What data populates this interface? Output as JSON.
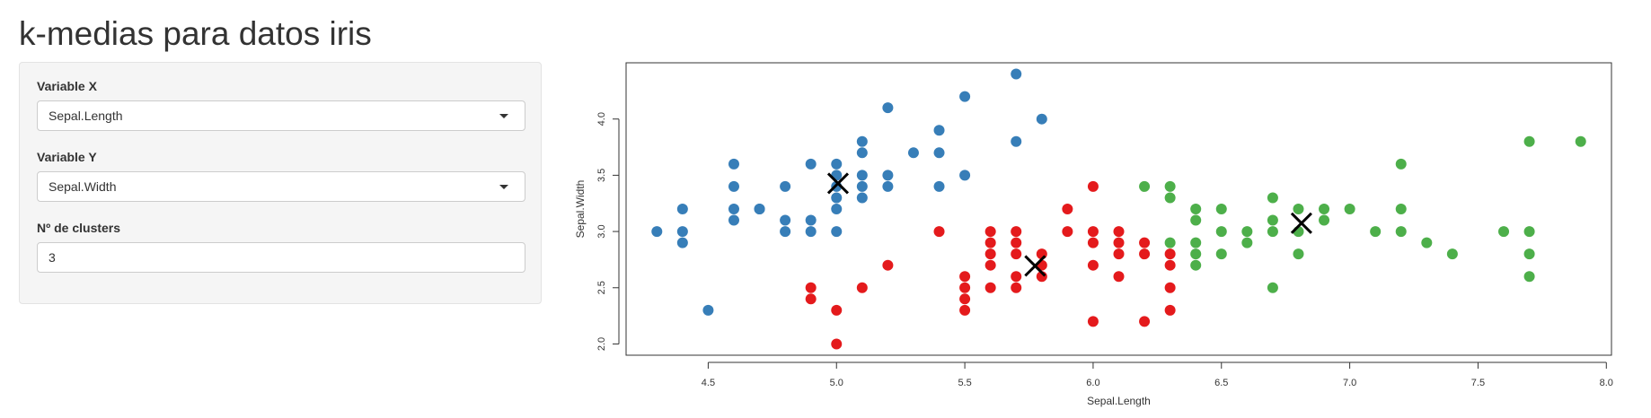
{
  "page": {
    "title": "k-medias para datos iris"
  },
  "sidebar": {
    "x_variable": {
      "label": "Variable X",
      "selected": "Sepal.Length"
    },
    "y_variable": {
      "label": "Variable Y",
      "selected": "Sepal.Width"
    },
    "clusters": {
      "label": "Nº de clusters",
      "value": "3"
    }
  },
  "chart_data": {
    "type": "scatter",
    "xlabel": "Sepal.Length",
    "ylabel": "Sepal.Width",
    "xlim": [
      4.18,
      8.02
    ],
    "ylim": [
      1.9,
      4.5
    ],
    "xticks": [
      "4.5",
      "5.0",
      "5.5",
      "6.0",
      "6.5",
      "7.0",
      "7.5",
      "8.0"
    ],
    "yticks": [
      "2.0",
      "2.5",
      "3.0",
      "3.5",
      "4.0"
    ],
    "grid": false,
    "series": [
      {
        "color": "#377eb8",
        "points": [
          [
            5.1,
            3.5
          ],
          [
            4.9,
            3.0
          ],
          [
            4.7,
            3.2
          ],
          [
            4.6,
            3.1
          ],
          [
            5.0,
            3.6
          ],
          [
            5.4,
            3.9
          ],
          [
            4.6,
            3.4
          ],
          [
            5.0,
            3.4
          ],
          [
            4.4,
            2.9
          ],
          [
            4.9,
            3.1
          ],
          [
            5.4,
            3.7
          ],
          [
            4.8,
            3.4
          ],
          [
            4.8,
            3.0
          ],
          [
            4.3,
            3.0
          ],
          [
            5.8,
            4.0
          ],
          [
            5.7,
            4.4
          ],
          [
            5.1,
            3.8
          ],
          [
            5.7,
            3.8
          ],
          [
            5.4,
            3.4
          ],
          [
            5.1,
            3.7
          ],
          [
            4.6,
            3.6
          ],
          [
            5.1,
            3.3
          ],
          [
            5.2,
            3.5
          ],
          [
            5.2,
            3.4
          ],
          [
            4.7,
            3.2
          ],
          [
            5.2,
            4.1
          ],
          [
            5.5,
            4.2
          ],
          [
            4.4,
            3.0
          ],
          [
            4.5,
            2.3
          ],
          [
            4.4,
            3.2
          ],
          [
            5.0,
            3.5
          ],
          [
            5.0,
            3.0
          ],
          [
            5.0,
            3.3
          ],
          [
            5.3,
            3.7
          ],
          [
            4.8,
            3.1
          ],
          [
            5.5,
            3.5
          ],
          [
            4.6,
            3.2
          ],
          [
            4.9,
            3.6
          ],
          [
            5.0,
            3.2
          ],
          [
            5.1,
            3.4
          ]
        ]
      },
      {
        "color": "#e41a1c",
        "points": [
          [
            4.9,
            2.5
          ],
          [
            4.9,
            2.4
          ],
          [
            5.0,
            2.0
          ],
          [
            5.0,
            2.3
          ],
          [
            5.1,
            2.5
          ],
          [
            5.2,
            2.7
          ],
          [
            5.4,
            3.0
          ],
          [
            5.5,
            2.3
          ],
          [
            5.5,
            2.4
          ],
          [
            5.5,
            2.5
          ],
          [
            5.5,
            2.6
          ],
          [
            5.6,
            2.5
          ],
          [
            5.6,
            2.7
          ],
          [
            5.6,
            2.8
          ],
          [
            5.6,
            2.9
          ],
          [
            5.6,
            3.0
          ],
          [
            5.7,
            2.5
          ],
          [
            5.7,
            2.6
          ],
          [
            5.7,
            2.8
          ],
          [
            5.7,
            2.9
          ],
          [
            5.7,
            3.0
          ],
          [
            5.8,
            2.6
          ],
          [
            5.8,
            2.7
          ],
          [
            5.8,
            2.8
          ],
          [
            5.9,
            3.0
          ],
          [
            5.9,
            3.2
          ],
          [
            6.0,
            2.2
          ],
          [
            6.0,
            2.7
          ],
          [
            6.0,
            2.9
          ],
          [
            6.0,
            3.0
          ],
          [
            6.0,
            3.4
          ],
          [
            6.1,
            2.6
          ],
          [
            6.1,
            2.8
          ],
          [
            6.1,
            2.9
          ],
          [
            6.1,
            3.0
          ],
          [
            6.2,
            2.2
          ],
          [
            6.2,
            2.8
          ],
          [
            6.2,
            2.9
          ],
          [
            6.3,
            2.3
          ],
          [
            6.3,
            2.5
          ],
          [
            6.3,
            2.7
          ],
          [
            6.3,
            2.8
          ]
        ]
      },
      {
        "color": "#4daf4a",
        "points": [
          [
            6.2,
            3.4
          ],
          [
            6.3,
            2.9
          ],
          [
            6.3,
            3.3
          ],
          [
            6.3,
            3.4
          ],
          [
            6.4,
            2.7
          ],
          [
            6.4,
            2.8
          ],
          [
            6.4,
            2.9
          ],
          [
            6.4,
            3.1
          ],
          [
            6.4,
            3.2
          ],
          [
            6.5,
            2.8
          ],
          [
            6.5,
            3.0
          ],
          [
            6.5,
            3.2
          ],
          [
            6.6,
            2.9
          ],
          [
            6.6,
            3.0
          ],
          [
            6.7,
            2.5
          ],
          [
            6.7,
            3.0
          ],
          [
            6.7,
            3.1
          ],
          [
            6.7,
            3.3
          ],
          [
            6.8,
            2.8
          ],
          [
            6.8,
            3.0
          ],
          [
            6.8,
            3.2
          ],
          [
            6.9,
            3.1
          ],
          [
            6.9,
            3.2
          ],
          [
            7.0,
            3.2
          ],
          [
            7.1,
            3.0
          ],
          [
            7.2,
            3.0
          ],
          [
            7.2,
            3.2
          ],
          [
            7.2,
            3.6
          ],
          [
            7.3,
            2.9
          ],
          [
            7.4,
            2.8
          ],
          [
            7.6,
            3.0
          ],
          [
            7.7,
            2.6
          ],
          [
            7.7,
            2.8
          ],
          [
            7.7,
            3.0
          ],
          [
            7.7,
            3.8
          ],
          [
            7.9,
            3.8
          ]
        ]
      }
    ],
    "centers": [
      [
        5.006,
        3.428
      ],
      [
        5.774,
        2.694
      ],
      [
        6.812,
        3.074
      ]
    ]
  }
}
